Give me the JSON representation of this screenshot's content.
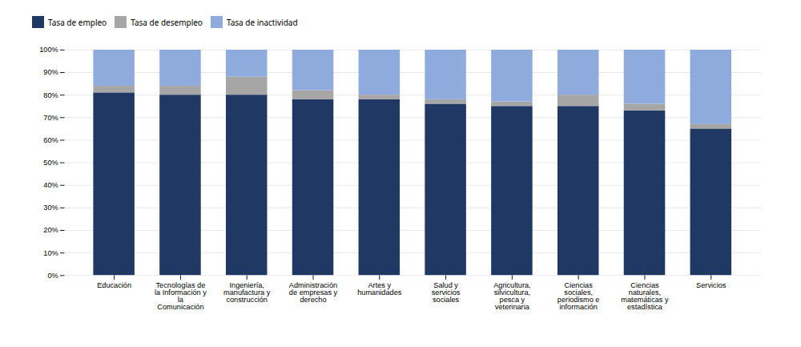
{
  "chart_data": {
    "type": "bar",
    "stacked": true,
    "categories": [
      "Educación",
      "Tecnologías de\nla Información y\nla\nComunicación",
      "Ingeniería,\nmanufactura y\nconstrucción",
      "Administración\nde empresas y\nderecho",
      "Artes y\nhumanidades",
      "Salud y\nservicios\nsociales",
      "Agricultura,\nsilvicultura,\npesca y\nveterinaria",
      "Ciencias\nsociales,\nperiodismo e\ninformación",
      "Ciencias\nnaturales,\nmatemáticas y\nestadística",
      "Servicios"
    ],
    "series": [
      {
        "name": "Tasa de empleo",
        "color": "#1f3864",
        "values": [
          81,
          80,
          80,
          78,
          78,
          76,
          75,
          75,
          73,
          65
        ]
      },
      {
        "name": "Tasa de desempleo",
        "color": "#a6a6a6",
        "values": [
          3,
          4,
          8,
          4,
          2,
          2,
          2,
          5,
          3,
          2
        ]
      },
      {
        "name": "Tasa de inactividad",
        "color": "#8faadc",
        "values": [
          16,
          16,
          12,
          18,
          20,
          22,
          23,
          20,
          24,
          33
        ]
      }
    ],
    "ylim": [
      0,
      100
    ],
    "yticks": [
      {
        "value": 0,
        "label": "0%"
      },
      {
        "value": 10,
        "label": "10%"
      },
      {
        "value": 20,
        "label": "20%"
      },
      {
        "value": 30,
        "label": "30%"
      },
      {
        "value": 40,
        "label": "40%"
      },
      {
        "value": 50,
        "label": "50%"
      },
      {
        "value": 60,
        "label": "60%"
      },
      {
        "value": 70,
        "label": "70%"
      },
      {
        "value": 80,
        "label": "80%"
      },
      {
        "value": 90,
        "label": "90%"
      },
      {
        "value": 100,
        "label": "100%"
      }
    ],
    "grid": true,
    "legend": "top"
  }
}
